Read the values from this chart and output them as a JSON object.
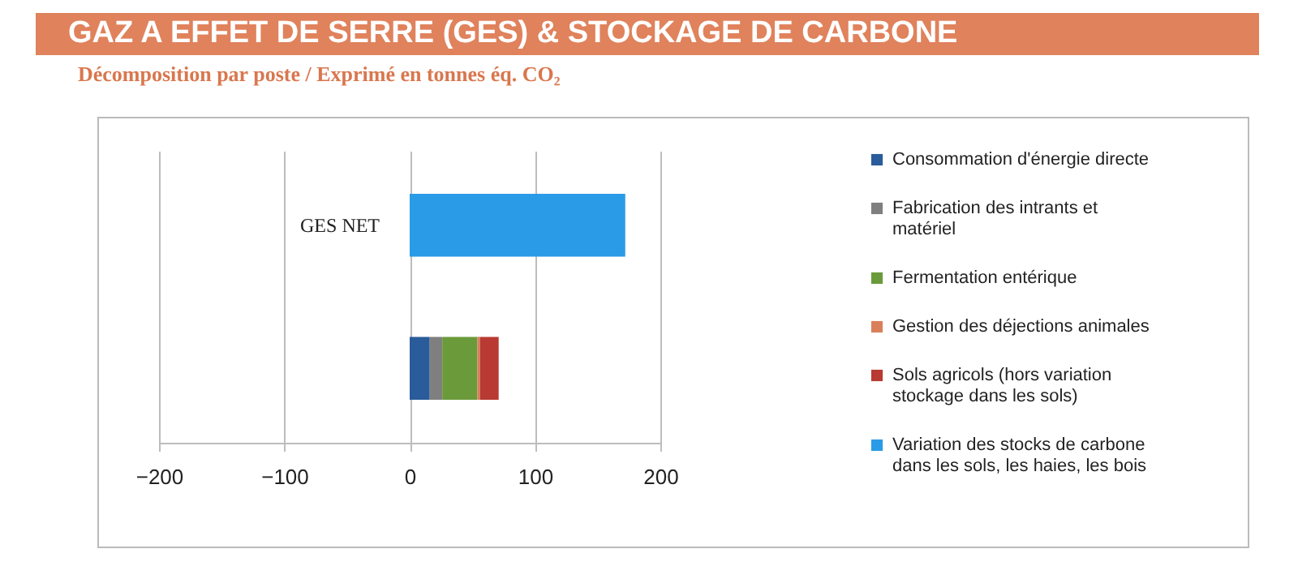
{
  "chart_data": {
    "type": "bar",
    "orientation": "horizontal",
    "stacked": true,
    "title": "GAZ A EFFET DE SERRE (GES) & STOCKAGE DE CARBONE",
    "subtitle": "Décomposition par poste / Exprimé en tonnes éq. CO₂",
    "categories": [
      "GES NET",
      null
    ],
    "series": [
      {
        "name": "Consommation d'énergie directe",
        "color": "#2a5b9a",
        "values": [
          null,
          16
        ]
      },
      {
        "name": "Fabrication des intrants et matériel",
        "color": "#7f7f7f",
        "values": [
          null,
          10
        ]
      },
      {
        "name": "Fermentation entérique",
        "color": "#6a9a3a",
        "values": [
          null,
          28
        ]
      },
      {
        "name": "Gestion des déjections animales",
        "color": "#d9805a",
        "values": [
          null,
          2
        ]
      },
      {
        "name": "Sols agricols (hors variation stockage dans les sols)",
        "color": "#b83a32",
        "values": [
          null,
          15
        ]
      },
      {
        "name": "Variation des stocks de carbone dans les sols, les haies, les bois",
        "color": "#2a9be6",
        "values": [
          172,
          null
        ]
      }
    ],
    "xlim": [
      -200,
      200
    ],
    "xticks": [
      -200,
      -100,
      0,
      100,
      200
    ],
    "grid": "x",
    "legend": "right"
  }
}
